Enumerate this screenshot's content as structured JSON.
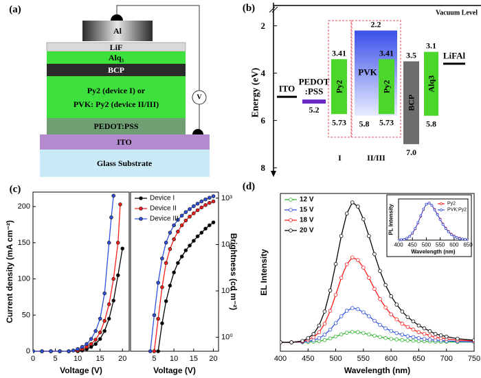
{
  "panel_labels": [
    "(a)",
    "(b)",
    "(c)",
    "(d)"
  ],
  "device_stack": {
    "layers": [
      [
        "Al"
      ],
      [
        "LiF"
      ],
      [
        "Alq₃"
      ],
      [
        "BCP"
      ],
      [
        "Py2 (device I) or",
        "PVK: Py2 (device II/III)"
      ],
      [
        "PEDOT:PSS"
      ],
      [
        "ITO"
      ],
      [
        "Glass Substrate"
      ]
    ],
    "meter": "V"
  },
  "chart_data": [
    {
      "type": "energy_levels",
      "y_label": "Energy (eV)",
      "top_label": "Vacuum Level",
      "ylim": [
        1.2,
        8.3
      ],
      "yticks": [
        2,
        4,
        6,
        8
      ],
      "layers": [
        {
          "name": [
            "ITO"
          ],
          "level": 5.0,
          "color": "#000000"
        },
        {
          "name": [
            "PEDOT",
            ":PSS"
          ],
          "values": [
            5.2
          ],
          "color": "#6a2bc4"
        },
        {
          "name": [
            "Py2"
          ],
          "values": [
            3.41,
            5.73
          ],
          "color": "#4cd62c"
        },
        {
          "name": [
            "PVK"
          ],
          "values": [
            2.2,
            5.8
          ],
          "color": "#3a4fe8"
        },
        {
          "name": [
            "Py2"
          ],
          "values": [
            3.41,
            5.73
          ],
          "color": "#4cd62c"
        },
        {
          "name": [
            "BCP"
          ],
          "values": [
            3.5,
            7.0
          ],
          "value_labels": [
            "3.5",
            "7.0"
          ],
          "color": "#6e6e6e"
        },
        {
          "name": [
            "Alq3"
          ],
          "values": [
            3.1,
            5.8
          ],
          "color": "#4cd62c"
        },
        {
          "name": [
            "LiFAl"
          ],
          "level": 3.6,
          "color": "#000000"
        }
      ],
      "groups": [
        "I",
        "II/III"
      ]
    },
    {
      "type": "line",
      "xlabel": "Voltage (V)",
      "ylabel": "Current density (mA cm⁻²)",
      "xlim": [
        0,
        21.5
      ],
      "ylim": [
        0,
        220
      ],
      "xticks": [
        0,
        5,
        10,
        15,
        20
      ],
      "yticks": [
        0,
        50,
        100,
        150,
        200
      ],
      "marker": "filled",
      "series": [
        {
          "color": "#000000",
          "x": [
            0,
            2,
            4,
            6,
            8,
            10,
            11,
            12,
            13,
            14,
            15,
            16,
            17,
            18,
            19,
            20
          ],
          "values": [
            0,
            0,
            0,
            0,
            0,
            0,
            1,
            3,
            6,
            10,
            17,
            28,
            45,
            70,
            105,
            142
          ]
        },
        {
          "color": "#ff1a1a",
          "x": [
            0,
            2,
            4,
            6,
            8,
            10,
            11,
            12,
            13,
            14,
            15,
            16,
            17,
            18,
            19,
            19.5
          ],
          "values": [
            0,
            0,
            0,
            0,
            0,
            1,
            3,
            6,
            10,
            16,
            26,
            42,
            65,
            100,
            150,
            203
          ]
        },
        {
          "color": "#2e4fe0",
          "x": [
            0,
            2,
            4,
            6,
            8,
            9,
            10,
            11,
            12,
            13,
            14,
            15,
            16,
            17,
            17.5,
            18
          ],
          "values": [
            0,
            0,
            0,
            0,
            0,
            1,
            3,
            6,
            10,
            17,
            28,
            45,
            80,
            150,
            185,
            215
          ]
        }
      ]
    },
    {
      "type": "line",
      "xlabel": "Voltage (V)",
      "ylabel": "Brightness (cd m⁻²)",
      "xlim": [
        -1,
        21.3
      ],
      "ylim": [
        0.5,
        1350
      ],
      "log_y": true,
      "y_axis": "right",
      "legend": "upper left",
      "marker": "filled",
      "xticks": [
        5,
        10,
        15,
        20
      ],
      "yticks": [
        {
          "value": 1,
          "label": "10⁰"
        },
        {
          "value": 10,
          "label": "10¹"
        },
        {
          "value": 100,
          "label": "10²"
        },
        {
          "value": 1000,
          "label": "10³"
        }
      ],
      "series": [
        {
          "name": "Device I",
          "color": "#000000",
          "x": [
            6,
            7,
            8,
            9,
            10,
            11,
            12,
            13,
            14,
            15,
            16,
            17,
            18,
            19,
            20
          ],
          "values": [
            0.5,
            2,
            6,
            13,
            25,
            40,
            55,
            75,
            95,
            120,
            150,
            180,
            220,
            260,
            300
          ]
        },
        {
          "name": "Device II",
          "color": "#ff1a1a",
          "x": [
            5,
            6,
            7,
            8,
            9,
            10,
            11,
            12,
            13,
            14,
            15,
            16,
            17,
            18,
            19,
            20
          ],
          "values": [
            0.5,
            2.5,
            12,
            40,
            80,
            130,
            190,
            260,
            330,
            400,
            470,
            550,
            630,
            710,
            790,
            850
          ]
        },
        {
          "name": "Device III",
          "color": "#2e4fe0",
          "x": [
            4,
            5,
            6,
            7,
            8,
            9,
            10,
            11,
            12,
            13,
            14,
            15,
            16,
            17,
            18,
            19,
            20
          ],
          "values": [
            0.5,
            3,
            15,
            50,
            110,
            180,
            260,
            340,
            420,
            500,
            580,
            670,
            760,
            850,
            940,
            1020,
            1100
          ]
        }
      ]
    },
    {
      "type": "line",
      "xlabel": "Wavelength (nm)",
      "ylabel": "EL Intensity",
      "xlim": [
        400,
        750
      ],
      "ylim": [
        -0.06,
        1.0
      ],
      "xticks": [
        400,
        450,
        500,
        550,
        600,
        650,
        700,
        750
      ],
      "legend": "upper left",
      "marker": "open",
      "x": [
        400,
        420,
        440,
        450,
        460,
        470,
        480,
        490,
        500,
        510,
        520,
        530,
        540,
        550,
        560,
        570,
        580,
        590,
        600,
        610,
        620,
        630,
        640,
        650,
        660,
        670,
        680,
        690,
        700,
        720,
        750
      ],
      "series": [
        {
          "name": "12 V",
          "color": "#2fb52f",
          "values": [
            0,
            0,
            0.001,
            0.002,
            0.004,
            0.008,
            0.015,
            0.026,
            0.039,
            0.053,
            0.064,
            0.07,
            0.068,
            0.062,
            0.053,
            0.044,
            0.036,
            0.029,
            0.023,
            0.019,
            0.015,
            0.013,
            0.011,
            0.008,
            0.007,
            0.006,
            0.004,
            0.004,
            0.003,
            0.002,
            0.001
          ]
        },
        {
          "name": "15 V",
          "color": "#2e4fe0",
          "values": [
            0,
            0,
            0.002,
            0.007,
            0.014,
            0.028,
            0.051,
            0.085,
            0.129,
            0.175,
            0.212,
            0.23,
            0.223,
            0.202,
            0.175,
            0.145,
            0.117,
            0.094,
            0.076,
            0.062,
            0.051,
            0.041,
            0.035,
            0.028,
            0.023,
            0.018,
            0.014,
            0.012,
            0.009,
            0.006,
            0.003
          ]
        },
        {
          "name": "18 V",
          "color": "#ff1a1a",
          "values": [
            0,
            0,
            0.006,
            0.017,
            0.034,
            0.068,
            0.125,
            0.211,
            0.319,
            0.433,
            0.524,
            0.57,
            0.553,
            0.502,
            0.433,
            0.359,
            0.291,
            0.234,
            0.188,
            0.154,
            0.125,
            0.103,
            0.086,
            0.068,
            0.057,
            0.046,
            0.034,
            0.029,
            0.023,
            0.014,
            0.009
          ]
        },
        {
          "name": "20 V",
          "color": "#000000",
          "values": [
            0,
            0,
            0.009,
            0.028,
            0.056,
            0.113,
            0.207,
            0.348,
            0.526,
            0.714,
            0.865,
            0.94,
            0.912,
            0.827,
            0.714,
            0.592,
            0.479,
            0.385,
            0.31,
            0.254,
            0.207,
            0.169,
            0.141,
            0.113,
            0.094,
            0.075,
            0.056,
            0.047,
            0.038,
            0.024,
            0.014
          ]
        }
      ]
    },
    {
      "type": "line",
      "xlabel": "Wavelength (nm)",
      "ylabel": "PL Intensity",
      "xlim": [
        400,
        650
      ],
      "ylim": [
        0,
        1.1
      ],
      "xticks": [
        400,
        450,
        500,
        550,
        600,
        650
      ],
      "legend": "upper right",
      "marker": "open",
      "x": [
        400,
        410,
        420,
        430,
        440,
        450,
        460,
        470,
        480,
        490,
        500,
        510,
        520,
        530,
        540,
        550,
        560,
        570,
        580,
        590,
        600,
        610,
        620,
        630,
        640,
        650
      ],
      "series": [
        {
          "name": "Py2",
          "color": "#ff1a1a",
          "values": [
            0,
            0.01,
            0.02,
            0.05,
            0.1,
            0.18,
            0.3,
            0.46,
            0.64,
            0.82,
            0.96,
            0.99,
            0.93,
            0.82,
            0.69,
            0.56,
            0.43,
            0.32,
            0.23,
            0.16,
            0.11,
            0.07,
            0.05,
            0.03,
            0.02,
            0.01
          ]
        },
        {
          "name": "PVK:Py2",
          "color": "#2e4fe0",
          "values": [
            0,
            0.01,
            0.02,
            0.05,
            0.1,
            0.19,
            0.31,
            0.47,
            0.65,
            0.83,
            0.96,
            0.99,
            0.93,
            0.81,
            0.68,
            0.55,
            0.42,
            0.31,
            0.22,
            0.15,
            0.1,
            0.07,
            0.04,
            0.03,
            0.02,
            0.01
          ]
        }
      ]
    }
  ]
}
